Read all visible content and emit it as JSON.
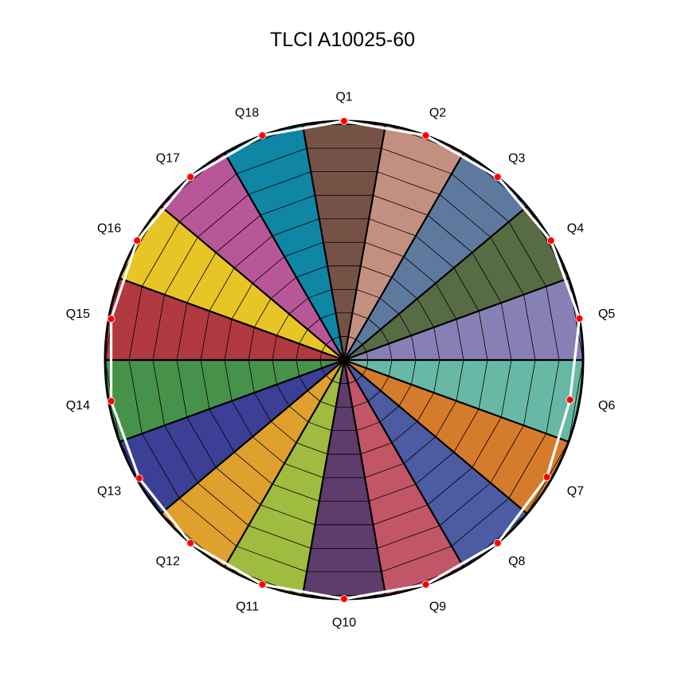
{
  "chart_data": {
    "type": "radar",
    "title": "TLCI A10025-60",
    "categories": [
      "Q1",
      "Q2",
      "Q3",
      "Q4",
      "Q5",
      "Q6",
      "Q7",
      "Q8",
      "Q9",
      "Q10",
      "Q11",
      "Q12",
      "Q13",
      "Q14",
      "Q15",
      "Q16",
      "Q17",
      "Q18"
    ],
    "sector_colors": [
      "#765246",
      "#c39080",
      "#5e799e",
      "#576b44",
      "#8780b4",
      "#67b9a6",
      "#d57b2c",
      "#4c5ba2",
      "#c25666",
      "#5e3c6b",
      "#9fbb40",
      "#e0a02e",
      "#3b3f95",
      "#47924b",
      "#b13a41",
      "#e7c526",
      "#b85798",
      "#0f86a4"
    ],
    "values": [
      100,
      100,
      100,
      100,
      100,
      96,
      98,
      100,
      100,
      100,
      100,
      100,
      99,
      99,
      99,
      100,
      100,
      100
    ],
    "rlim": [
      0,
      100
    ],
    "ring_count": 10,
    "ring_step": 10,
    "reference_line_color": "#000000",
    "measured_line_color": "#ffffff",
    "marker_color": "#ff0000"
  }
}
